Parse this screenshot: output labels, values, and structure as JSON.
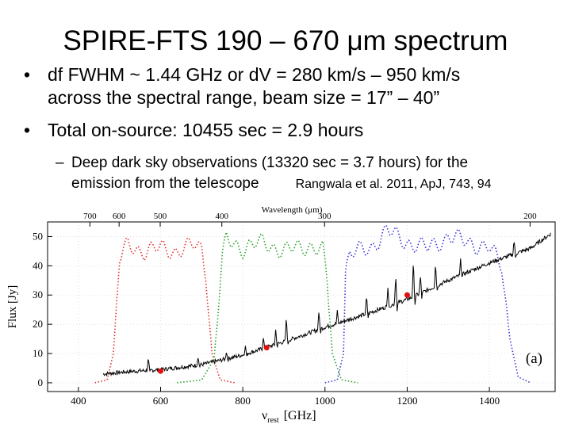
{
  "slide": {
    "title": "SPIRE-FTS 190 – 670 μm spectrum",
    "bullets": [
      {
        "symbol": "•",
        "line1": "df FWHM ~ 1.44 GHz or dV = 280 km/s – 950 km/s",
        "line2": "across the spectral range, beam size = 17” – 40”"
      },
      {
        "symbol": "•",
        "line1": "Total on-source: 10455 sec = 2.9 hours"
      }
    ],
    "subbullet": {
      "symbol": "–",
      "line1": "Deep dark sky observations (13320 sec = 3.7 hours) for the",
      "line2": "emission from the telescope",
      "reference": "Rangwala et al. 2011, ApJ, 743, 94"
    }
  },
  "chart_data": {
    "type": "line",
    "xlabel": "ν",
    "xlabel_sub": "rest",
    "xlabel_unit": "[GHz]",
    "ylabel": "Flux [Jy]",
    "top_axis_label": "Wavelength (μm)",
    "xlim": [
      325,
      1560
    ],
    "ylim": [
      -3,
      55
    ],
    "x_ticks": [
      "400",
      "600",
      "800",
      "1000",
      "1200",
      "1400"
    ],
    "y_ticks": [
      "0",
      "10",
      "20",
      "30",
      "40",
      "50"
    ],
    "top_ticks": [
      {
        "label": "700",
        "x": 428
      },
      {
        "label": "600",
        "x": 499
      },
      {
        "label": "500",
        "x": 599
      },
      {
        "label": "400",
        "x": 749
      },
      {
        "label": "300",
        "x": 999
      },
      {
        "label": "200",
        "x": 1499
      }
    ],
    "panel_label": "(a)",
    "colors": {
      "spectrum": "#000000",
      "slw": "#e03030",
      "ssw_low": "#2aa02a",
      "ssw_high": "#3838d8",
      "points": "#e01010"
    },
    "continuum": [
      [
        460,
        3
      ],
      [
        520,
        3.8
      ],
      [
        600,
        4.5
      ],
      [
        700,
        6.2
      ],
      [
        800,
        9.5
      ],
      [
        900,
        14
      ],
      [
        1000,
        19
      ],
      [
        1100,
        23.5
      ],
      [
        1200,
        28.5
      ],
      [
        1300,
        35
      ],
      [
        1400,
        41
      ],
      [
        1500,
        46
      ],
      [
        1550,
        51
      ]
    ],
    "lines": [
      [
        570,
        4
      ],
      [
        691,
        3
      ],
      [
        760,
        2.5
      ],
      [
        806,
        3
      ],
      [
        850,
        4
      ],
      [
        880,
        5
      ],
      [
        906,
        8
      ],
      [
        985,
        6
      ],
      [
        1030,
        4
      ],
      [
        1101,
        6
      ],
      [
        1153,
        7
      ],
      [
        1172,
        10
      ],
      [
        1215,
        12
      ],
      [
        1232,
        6
      ],
      [
        1269,
        8
      ],
      [
        1330,
        5
      ],
      [
        1460,
        5
      ]
    ],
    "filter_slw": [
      [
        440,
        0
      ],
      [
        470,
        1
      ],
      [
        485,
        10
      ],
      [
        500,
        42
      ],
      [
        520,
        47
      ],
      [
        560,
        45
      ],
      [
        600,
        46
      ],
      [
        640,
        45
      ],
      [
        680,
        47
      ],
      [
        700,
        46
      ],
      [
        710,
        38
      ],
      [
        725,
        10
      ],
      [
        745,
        1
      ],
      [
        780,
        0
      ]
    ],
    "filter_ssw_low": [
      [
        640,
        0
      ],
      [
        700,
        1
      ],
      [
        730,
        8
      ],
      [
        750,
        42
      ],
      [
        760,
        49
      ],
      [
        800,
        46
      ],
      [
        850,
        48
      ],
      [
        900,
        45
      ],
      [
        960,
        47
      ],
      [
        995,
        45
      ],
      [
        1005,
        35
      ],
      [
        1018,
        10
      ],
      [
        1040,
        1
      ],
      [
        1080,
        0
      ]
    ],
    "filter_ssw_high": [
      [
        1000,
        0
      ],
      [
        1030,
        1
      ],
      [
        1045,
        10
      ],
      [
        1050,
        38
      ],
      [
        1060,
        44
      ],
      [
        1110,
        46
      ],
      [
        1150,
        52
      ],
      [
        1200,
        48
      ],
      [
        1250,
        46
      ],
      [
        1300,
        50
      ],
      [
        1350,
        48
      ],
      [
        1400,
        46
      ],
      [
        1430,
        40
      ],
      [
        1450,
        15
      ],
      [
        1470,
        2
      ],
      [
        1500,
        0
      ]
    ],
    "points": [
      [
        600,
        4
      ],
      [
        858,
        12
      ],
      [
        1200,
        30
      ]
    ]
  }
}
